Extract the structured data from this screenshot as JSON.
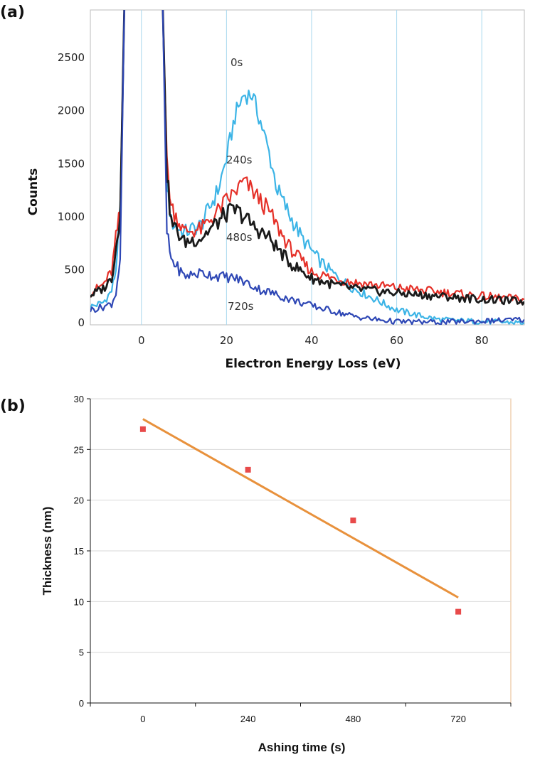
{
  "chart_data": [
    {
      "panel_label": "(a)",
      "type": "line",
      "xlabel": "Electron Energy Loss (eV)",
      "ylabel": "Counts",
      "xlim": [
        -12,
        90
      ],
      "ylim": [
        -20,
        2950
      ],
      "x_ticks": [
        0,
        20,
        40,
        60,
        80
      ],
      "y_ticks": [
        0,
        500,
        1000,
        1500,
        2000,
        2500
      ],
      "grid": "vertical",
      "annotations": [
        "0s",
        "240s",
        "480s",
        "720s"
      ],
      "series": [
        {
          "name": "0s",
          "color": "#3cb4e6",
          "points": [
            [
              -12,
              150
            ],
            [
              -9,
              190
            ],
            [
              -7,
              300
            ],
            [
              -6,
              500
            ],
            [
              -5,
              1100
            ],
            [
              -4,
              3000
            ],
            [
              5,
              3000
            ],
            [
              6,
              1300
            ],
            [
              7,
              950
            ],
            [
              10,
              850
            ],
            [
              14,
              920
            ],
            [
              18,
              1250
            ],
            [
              20,
              1550
            ],
            [
              22,
              1950
            ],
            [
              24,
              2150
            ],
            [
              26,
              2150
            ],
            [
              28,
              1900
            ],
            [
              30,
              1600
            ],
            [
              32,
              1250
            ],
            [
              35,
              1000
            ],
            [
              38,
              780
            ],
            [
              42,
              580
            ],
            [
              46,
              430
            ],
            [
              50,
              320
            ],
            [
              55,
              220
            ],
            [
              60,
              120
            ],
            [
              65,
              70
            ],
            [
              70,
              30
            ],
            [
              80,
              10
            ],
            [
              90,
              0
            ]
          ]
        },
        {
          "name": "240s",
          "color": "#e53028",
          "points": [
            [
              -12,
              280
            ],
            [
              -9,
              360
            ],
            [
              -7,
              480
            ],
            [
              -6,
              800
            ],
            [
              -5,
              1050
            ],
            [
              -4,
              3000
            ],
            [
              5,
              3000
            ],
            [
              6,
              1500
            ],
            [
              7,
              1100
            ],
            [
              10,
              860
            ],
            [
              14,
              880
            ],
            [
              18,
              1050
            ],
            [
              20,
              1150
            ],
            [
              22,
              1230
            ],
            [
              24,
              1330
            ],
            [
              26,
              1250
            ],
            [
              28,
              1150
            ],
            [
              30,
              1050
            ],
            [
              32,
              900
            ],
            [
              35,
              700
            ],
            [
              40,
              480
            ],
            [
              45,
              420
            ],
            [
              50,
              380
            ],
            [
              60,
              330
            ],
            [
              70,
              290
            ],
            [
              80,
              250
            ],
            [
              90,
              220
            ]
          ]
        },
        {
          "name": "480s",
          "color": "#1a1a1a",
          "points": [
            [
              -12,
              260
            ],
            [
              -9,
              320
            ],
            [
              -7,
              420
            ],
            [
              -6,
              700
            ],
            [
              -5,
              1000
            ],
            [
              -4,
              3000
            ],
            [
              5,
              3000
            ],
            [
              6,
              1400
            ],
            [
              7,
              950
            ],
            [
              10,
              760
            ],
            [
              14,
              800
            ],
            [
              18,
              950
            ],
            [
              20,
              1030
            ],
            [
              22,
              1060
            ],
            [
              24,
              1010
            ],
            [
              26,
              920
            ],
            [
              28,
              860
            ],
            [
              30,
              800
            ],
            [
              32,
              700
            ],
            [
              35,
              560
            ],
            [
              40,
              420
            ],
            [
              45,
              360
            ],
            [
              50,
              320
            ],
            [
              60,
              280
            ],
            [
              70,
              250
            ],
            [
              80,
              220
            ],
            [
              90,
              200
            ]
          ]
        },
        {
          "name": "720s",
          "color": "#2e47b5",
          "points": [
            [
              -12,
              120
            ],
            [
              -9,
              150
            ],
            [
              -7,
              180
            ],
            [
              -6,
              280
            ],
            [
              -5,
              600
            ],
            [
              -4,
              3000
            ],
            [
              5,
              3000
            ],
            [
              6,
              850
            ],
            [
              7,
              600
            ],
            [
              10,
              440
            ],
            [
              14,
              470
            ],
            [
              18,
              440
            ],
            [
              20,
              430
            ],
            [
              22,
              420
            ],
            [
              24,
              390
            ],
            [
              26,
              350
            ],
            [
              28,
              310
            ],
            [
              30,
              290
            ],
            [
              32,
              260
            ],
            [
              35,
              220
            ],
            [
              40,
              160
            ],
            [
              45,
              110
            ],
            [
              50,
              60
            ],
            [
              55,
              30
            ],
            [
              60,
              10
            ],
            [
              70,
              5
            ],
            [
              80,
              15
            ],
            [
              90,
              30
            ]
          ]
        }
      ]
    },
    {
      "panel_label": "(b)",
      "type": "scatter",
      "xlabel": "Ashing time (s)",
      "ylabel": "Thickness (nm)",
      "categories": [
        "0",
        "240",
        "480",
        "720"
      ],
      "y_ticks": [
        0,
        5,
        10,
        15,
        20,
        25,
        30
      ],
      "ylim": [
        0,
        30
      ],
      "grid": "horizontal",
      "points": [
        {
          "x": "0",
          "y": 27
        },
        {
          "x": "240",
          "y": 23
        },
        {
          "x": "480",
          "y": 18
        },
        {
          "x": "720",
          "y": 9
        }
      ],
      "trendline": {
        "y_start": 28.0,
        "y_end": 10.4,
        "color": "#e8913c"
      },
      "marker_color": "#e84a4a"
    }
  ]
}
